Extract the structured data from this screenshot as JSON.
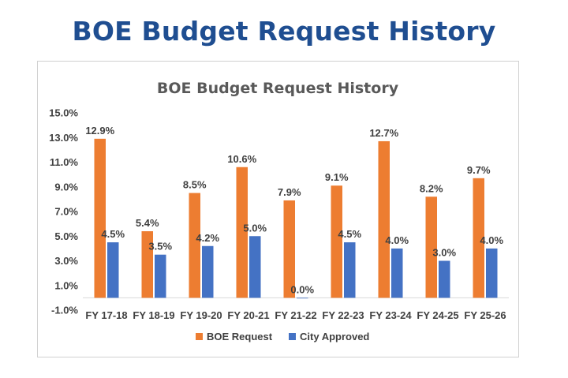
{
  "page": {
    "title": "BOE Budget Request History"
  },
  "chart_data": {
    "type": "bar",
    "title": "BOE Budget Request History",
    "categories": [
      "FY 17-18",
      "FY 18-19",
      "FY 19-20",
      "FY 20-21",
      "FY 21-22",
      "FY 22-23",
      "FY 23-24",
      "FY 24-25",
      "FY 25-26"
    ],
    "series": [
      {
        "name": "BOE Request",
        "color": "#ed7d31",
        "values": [
          12.9,
          5.4,
          8.5,
          10.6,
          7.9,
          9.1,
          12.7,
          8.2,
          9.7
        ],
        "labels": [
          "12.9%",
          "5.4%",
          "8.5%",
          "10.6%",
          "7.9%",
          "9.1%",
          "12.7%",
          "8.2%",
          "9.7%"
        ]
      },
      {
        "name": "City Approved",
        "color": "#4472c4",
        "values": [
          4.5,
          3.5,
          4.2,
          5.0,
          0.0,
          4.5,
          4.0,
          3.0,
          4.0
        ],
        "labels": [
          "4.5%",
          "3.5%",
          "4.2%",
          "5.0%",
          "0.0%",
          "4.5%",
          "4.0%",
          "3.0%",
          "4.0%"
        ]
      }
    ],
    "ylim": [
      -1.0,
      15.0
    ],
    "yticks": [
      15.0,
      13.0,
      11.0,
      9.0,
      7.0,
      5.0,
      3.0,
      1.0,
      -1.0
    ],
    "ytick_labels": [
      "15.0%",
      "13.0%",
      "11.0%",
      "9.0%",
      "7.0%",
      "5.0%",
      "3.0%",
      "1.0%",
      "-1.0%"
    ],
    "legend_position": "bottom",
    "grid": false
  }
}
